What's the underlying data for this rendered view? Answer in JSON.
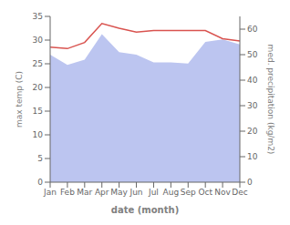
{
  "chart_data": {
    "type": "line",
    "xlabel": "date (month)",
    "ylabel": "max temp (C)",
    "y2label": "med. precipitation (kg/m2)",
    "categories": [
      "Jan",
      "Feb",
      "Mar",
      "Apr",
      "May",
      "Jun",
      "Jul",
      "Aug",
      "Sep",
      "Oct",
      "Nov",
      "Dec"
    ],
    "series": [
      {
        "type": "area",
        "axis": "y2",
        "color": "#bcc5f0",
        "values": [
          50.0,
          46.0,
          48.0,
          58.0,
          51.0,
          50.0,
          47.0,
          47.0,
          46.5,
          55.0,
          56.0,
          54.0
        ]
      },
      {
        "type": "line",
        "axis": "y",
        "color": "#d9534f",
        "values": [
          28.5,
          28.2,
          29.5,
          33.5,
          32.5,
          31.7,
          32.0,
          32.0,
          32.0,
          32.0,
          30.3,
          29.8
        ]
      }
    ],
    "ylim": [
      0,
      35
    ],
    "yticks": [
      0,
      5,
      10,
      15,
      20,
      25,
      30,
      35
    ],
    "y2lim": [
      0,
      65
    ],
    "y2ticks": [
      0,
      10,
      20,
      30,
      40,
      50,
      60
    ],
    "grid": false
  }
}
